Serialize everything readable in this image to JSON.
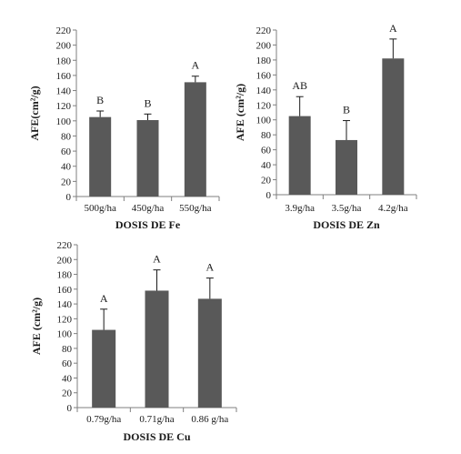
{
  "colors": {
    "bar": "#595959",
    "axis": "#7f7f7f",
    "text": "#1a1a1a",
    "error_bar": "#1a1a1a"
  },
  "chart_data": [
    {
      "type": "bar",
      "title": "",
      "xlabel": "DOSIS DE Fe",
      "ylabel": "AFE(cm²/g)",
      "ylim": [
        0,
        220
      ],
      "yticks": [
        0,
        20,
        40,
        60,
        80,
        100,
        120,
        140,
        160,
        180,
        200,
        220
      ],
      "grid": false,
      "categories": [
        "500g/ha",
        "450g/ha",
        "550g/ha"
      ],
      "values": [
        105,
        101,
        151
      ],
      "errors": [
        8,
        8,
        8
      ],
      "letters": [
        "B",
        "B",
        "A"
      ]
    },
    {
      "type": "bar",
      "title": "",
      "xlabel": "DOSIS DE Zn",
      "ylabel": "AFE (cm²/g)",
      "ylim": [
        0,
        220
      ],
      "yticks": [
        0,
        20,
        40,
        60,
        80,
        100,
        120,
        140,
        160,
        180,
        200,
        220
      ],
      "grid": false,
      "categories": [
        "3.9g/ha",
        "3.5g/ha",
        "4.2g/ha"
      ],
      "values": [
        105,
        73,
        182
      ],
      "errors": [
        26,
        26,
        26
      ],
      "letters": [
        "AB",
        "B",
        "A"
      ]
    },
    {
      "type": "bar",
      "title": "",
      "xlabel": "DOSIS DE Cu",
      "ylabel": "AFE (cm²/g)",
      "ylim": [
        0,
        220
      ],
      "yticks": [
        0,
        20,
        40,
        60,
        80,
        100,
        120,
        140,
        160,
        180,
        200,
        220
      ],
      "grid": false,
      "categories": [
        "0.79g/ha",
        "0.71g/ha",
        "0.86 g/ha"
      ],
      "values": [
        105,
        158,
        147
      ],
      "errors": [
        28,
        28,
        28
      ],
      "letters": [
        "A",
        "A",
        "A"
      ]
    }
  ]
}
